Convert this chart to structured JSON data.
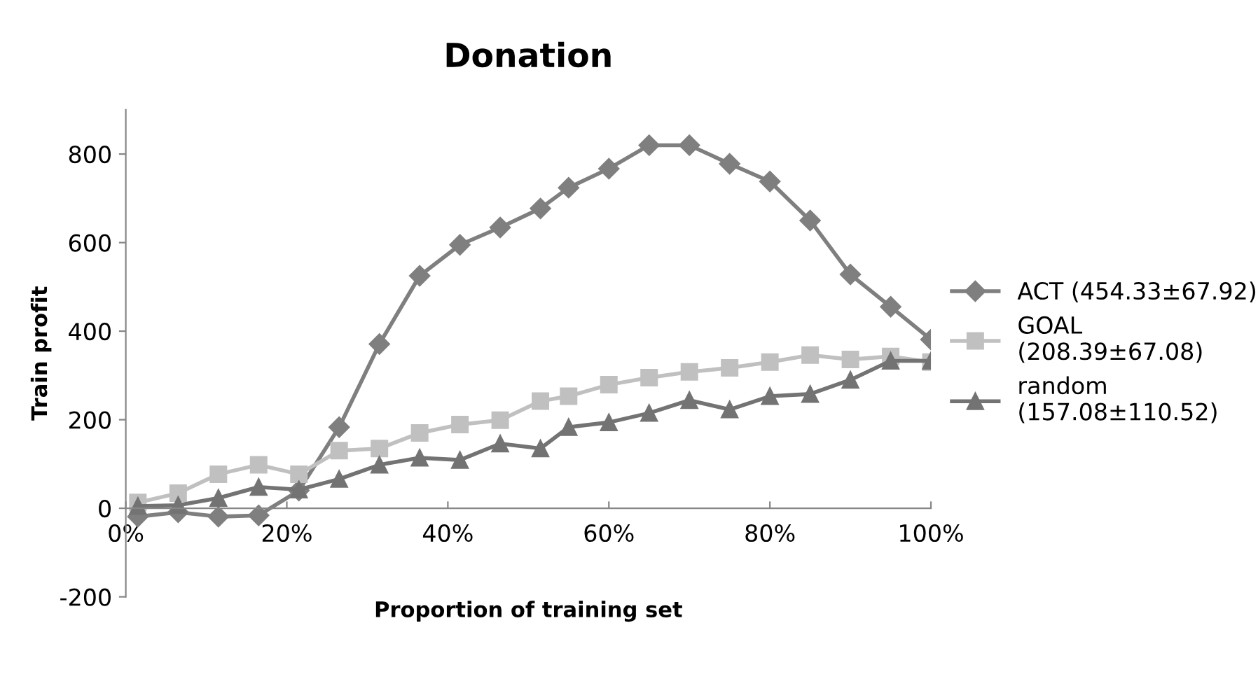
{
  "chart_data": {
    "type": "line",
    "title": "Donation",
    "xlabel": "Proportion of training set",
    "ylabel": "Train profit",
    "x": [
      1.5,
      6.5,
      11.5,
      16.5,
      21.5,
      26.5,
      31.5,
      36.5,
      41.5,
      46.5,
      51.5,
      55,
      60,
      65,
      70,
      75,
      80,
      85,
      90,
      95,
      100
    ],
    "series": [
      {
        "name": "ACT (454.33±67.92)",
        "color": "#7f7f7f",
        "marker": "diamond",
        "values": [
          -19,
          -9,
          -19,
          -16,
          40,
          183,
          371,
          525,
          595,
          634,
          677,
          724,
          767,
          820,
          820,
          778,
          738,
          650,
          528,
          455,
          381
        ]
      },
      {
        "name": "GOAL\n(208.39±67.08)",
        "color": "#c0c0c0",
        "marker": "square",
        "values": [
          13,
          34,
          77,
          98,
          77,
          130,
          135,
          170,
          189,
          199,
          242,
          253,
          279,
          295,
          308,
          317,
          330,
          346,
          336,
          343,
          330
        ]
      },
      {
        "name": "random\n(157.08±110.52)",
        "color": "#737373",
        "marker": "triangle",
        "values": [
          5,
          7,
          23,
          48,
          42,
          66,
          98,
          114,
          109,
          146,
          135,
          183,
          194,
          215,
          244,
          223,
          253,
          258,
          290,
          333,
          333
        ]
      }
    ],
    "xlim": [
      0,
      100
    ],
    "xticks": [
      {
        "value": 0,
        "label": "0%"
      },
      {
        "value": 20,
        "label": "20%"
      },
      {
        "value": 40,
        "label": "40%"
      },
      {
        "value": 60,
        "label": "60%"
      },
      {
        "value": 80,
        "label": "80%"
      },
      {
        "value": 100,
        "label": "100%"
      }
    ],
    "ylim": [
      -200,
      900
    ],
    "yticks": [
      -200,
      0,
      200,
      400,
      600,
      800
    ],
    "grid": false,
    "legend": "right"
  }
}
